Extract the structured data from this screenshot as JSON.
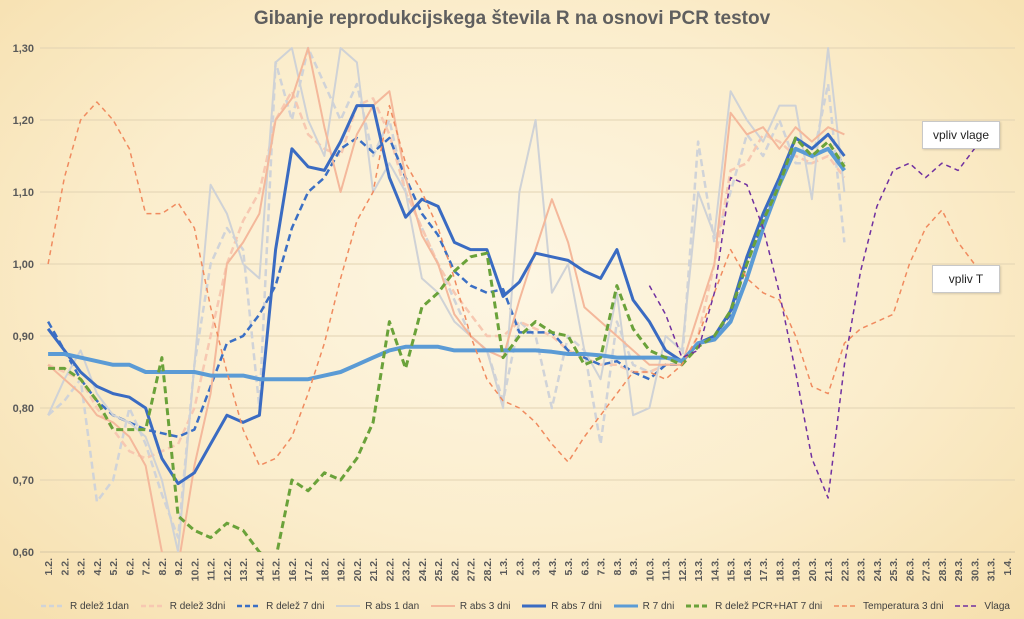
{
  "chart_data": {
    "type": "line",
    "title": "Gibanje reprodukcijskega števila R na osnovi PCR testov",
    "xlabel": "",
    "ylabel": "",
    "ylim": [
      0.6,
      1.3
    ],
    "yticks": [
      "0,60",
      "0,70",
      "0,80",
      "0,90",
      "1,00",
      "1,10",
      "1,20",
      "1,30"
    ],
    "grid": true,
    "legend_position": "bottom",
    "categories": [
      "1.2.",
      "2.2.",
      "3.2.",
      "4.2.",
      "5.2.",
      "6.2.",
      "7.2.",
      "8.2.",
      "9.2.",
      "10.2.",
      "11.2.",
      "12.2.",
      "13.2.",
      "14.2.",
      "15.2.",
      "16.2.",
      "17.2.",
      "18.2.",
      "19.2.",
      "20.2.",
      "21.2.",
      "22.2.",
      "23.2.",
      "24.2.",
      "25.2.",
      "26.2.",
      "27.2.",
      "28.2.",
      "1.3.",
      "2.3.",
      "3.3.",
      "4.3.",
      "5.3.",
      "6.3.",
      "7.3.",
      "8.3.",
      "9.3.",
      "10.3.",
      "11.3.",
      "12.3.",
      "13.3.",
      "14.3.",
      "15.3.",
      "16.3.",
      "17.3.",
      "18.3.",
      "19.3.",
      "20.3.",
      "21.3.",
      "22.3.",
      "23.3.",
      "24.3.",
      "25.3.",
      "26.3.",
      "27.3.",
      "28.3.",
      "29.3.",
      "30.3.",
      "31.3.",
      "1.4."
    ],
    "series": [
      {
        "name": "R delež 1dan",
        "color": "#d0d3d8",
        "dash": "dashed",
        "width": 2.5,
        "values": [
          0.79,
          0.81,
          0.84,
          0.67,
          0.7,
          0.8,
          0.75,
          0.68,
          0.62,
          0.86,
          1.0,
          1.05,
          1.02,
          0.8,
          1.28,
          1.2,
          1.3,
          1.25,
          1.2,
          1.25,
          1.15,
          1.2,
          1.1,
          1.05,
          1.0,
          0.95,
          0.9,
          0.88,
          0.81,
          0.92,
          0.9,
          0.8,
          0.9,
          0.88,
          0.75,
          0.92,
          0.86,
          0.85,
          0.86,
          0.86,
          1.17,
          1.03,
          1.1,
          1.18,
          1.15,
          1.2,
          1.14,
          1.14,
          1.25,
          1.03,
          null,
          null,
          null,
          null,
          null,
          null,
          null,
          null,
          null,
          null
        ]
      },
      {
        "name": "R delež 3dni",
        "color": "#f7c8b1",
        "dash": "dashed",
        "width": 2.5,
        "values": [
          0.86,
          0.85,
          0.84,
          0.8,
          0.77,
          0.74,
          0.73,
          0.74,
          0.75,
          0.8,
          0.9,
          1.0,
          1.06,
          1.1,
          1.2,
          1.24,
          1.18,
          1.16,
          1.15,
          1.22,
          1.23,
          1.18,
          1.1,
          1.05,
          1.0,
          0.96,
          0.93,
          0.9,
          0.9,
          0.92,
          0.91,
          0.9,
          0.88,
          0.87,
          0.86,
          0.86,
          0.85,
          0.85,
          0.86,
          0.86,
          0.9,
          1.0,
          1.13,
          1.14,
          1.18,
          1.17,
          1.15,
          1.14,
          1.15,
          1.12,
          null,
          null,
          null,
          null,
          null,
          null,
          null,
          null,
          null,
          null
        ]
      },
      {
        "name": "R delež 7 dni",
        "color": "#3b6fc4",
        "dash": "dashed",
        "width": 2.5,
        "values": [
          0.92,
          0.88,
          0.84,
          0.81,
          0.79,
          0.78,
          0.77,
          0.765,
          0.76,
          0.77,
          0.83,
          0.89,
          0.9,
          0.93,
          0.97,
          1.05,
          1.1,
          1.12,
          1.16,
          1.175,
          1.155,
          1.175,
          1.12,
          1.07,
          1.04,
          0.99,
          0.97,
          0.96,
          0.965,
          0.905,
          0.905,
          0.905,
          0.88,
          0.87,
          0.86,
          0.865,
          0.85,
          0.84,
          0.86,
          0.86,
          0.89,
          0.9,
          0.93,
          1.0,
          1.06,
          1.11,
          1.16,
          1.15,
          1.16,
          1.14,
          null,
          null,
          null,
          null,
          null,
          null,
          null,
          null,
          null,
          null
        ]
      },
      {
        "name": "R abs 1 dan",
        "color": "#cfd2d6",
        "dash": "solid",
        "width": 2,
        "values": [
          0.79,
          0.84,
          0.88,
          0.82,
          0.79,
          0.78,
          0.76,
          0.7,
          0.6,
          0.86,
          1.11,
          1.07,
          1.0,
          0.98,
          1.28,
          1.3,
          1.2,
          1.15,
          1.3,
          1.28,
          1.1,
          1.14,
          1.1,
          0.98,
          0.96,
          0.92,
          0.9,
          0.88,
          0.8,
          1.1,
          1.2,
          0.96,
          1.0,
          0.88,
          0.84,
          0.96,
          0.79,
          0.8,
          0.9,
          0.88,
          1.1,
          1.04,
          1.24,
          1.2,
          1.17,
          1.22,
          1.22,
          1.09,
          1.3,
          1.1,
          null,
          null,
          null,
          null,
          null,
          null,
          null,
          null,
          null,
          null
        ]
      },
      {
        "name": "R abs 3 dni",
        "color": "#f4b89b",
        "dash": "solid",
        "width": 2,
        "values": [
          0.86,
          0.84,
          0.82,
          0.79,
          0.78,
          0.76,
          0.72,
          0.6,
          0.58,
          0.72,
          0.82,
          1.0,
          1.03,
          1.07,
          1.2,
          1.23,
          1.3,
          1.19,
          1.1,
          1.18,
          1.22,
          1.24,
          1.12,
          1.04,
          1.0,
          0.93,
          0.9,
          0.88,
          0.87,
          0.95,
          1.02,
          1.09,
          1.03,
          0.94,
          0.92,
          0.9,
          0.88,
          0.86,
          0.86,
          0.86,
          0.93,
          1.0,
          1.21,
          1.18,
          1.19,
          1.16,
          1.19,
          1.17,
          1.19,
          1.18,
          null,
          null,
          null,
          null,
          null,
          null,
          null,
          null,
          null,
          null
        ]
      },
      {
        "name": "R abs 7 dni",
        "color": "#3a6bc2",
        "dash": "solid",
        "width": 3,
        "values": [
          0.91,
          0.88,
          0.85,
          0.83,
          0.82,
          0.815,
          0.8,
          0.73,
          0.695,
          0.71,
          0.75,
          0.79,
          0.78,
          0.79,
          1.02,
          1.16,
          1.135,
          1.13,
          1.17,
          1.22,
          1.22,
          1.12,
          1.065,
          1.09,
          1.08,
          1.03,
          1.02,
          1.02,
          0.955,
          0.975,
          1.015,
          1.01,
          1.005,
          0.99,
          0.98,
          1.02,
          0.95,
          0.92,
          0.88,
          0.865,
          0.89,
          0.9,
          0.935,
          1.01,
          1.07,
          1.12,
          1.175,
          1.16,
          1.18,
          1.15,
          null,
          null,
          null,
          null,
          null,
          null,
          null,
          null,
          null,
          null
        ]
      },
      {
        "name": "R 7 dni",
        "color": "#5b9bd5",
        "dash": "solid",
        "width": 4,
        "values": [
          0.875,
          0.875,
          0.87,
          0.865,
          0.86,
          0.86,
          0.85,
          0.85,
          0.85,
          0.85,
          0.845,
          0.845,
          0.845,
          0.84,
          0.84,
          0.84,
          0.84,
          0.845,
          0.85,
          0.86,
          0.87,
          0.88,
          0.885,
          0.885,
          0.885,
          0.88,
          0.88,
          0.88,
          0.88,
          0.88,
          0.88,
          0.878,
          0.875,
          0.875,
          0.873,
          0.87,
          0.87,
          0.87,
          0.87,
          0.865,
          0.89,
          0.895,
          0.92,
          0.98,
          1.05,
          1.11,
          1.16,
          1.15,
          1.16,
          1.13,
          null,
          null,
          null,
          null,
          null,
          null,
          null,
          null,
          null,
          null
        ]
      },
      {
        "name": "R delež PCR+HAT 7 dni",
        "color": "#6aa23a",
        "dash": "dashed",
        "width": 3,
        "values": [
          0.855,
          0.855,
          0.84,
          0.81,
          0.77,
          0.77,
          0.77,
          0.87,
          0.65,
          0.63,
          0.62,
          0.64,
          0.63,
          0.6,
          0.59,
          0.7,
          0.685,
          0.71,
          0.7,
          0.73,
          0.78,
          0.92,
          0.855,
          0.94,
          0.96,
          0.99,
          1.01,
          1.015,
          0.87,
          0.9,
          0.92,
          0.905,
          0.9,
          0.86,
          0.87,
          0.97,
          0.91,
          0.88,
          0.87,
          0.86,
          0.885,
          0.9,
          0.935,
          1.0,
          1.06,
          1.11,
          1.175,
          1.15,
          1.17,
          1.135,
          null,
          null,
          null,
          null,
          null,
          null,
          null,
          null,
          null,
          null
        ]
      },
      {
        "name": "Temperatura 3 dni",
        "color": "#f08b5f",
        "dash": "dashed",
        "width": 1.5,
        "values": [
          1.0,
          1.12,
          1.2,
          1.225,
          1.2,
          1.16,
          1.07,
          1.07,
          1.085,
          1.05,
          0.94,
          0.85,
          0.77,
          0.72,
          0.73,
          0.76,
          0.82,
          0.89,
          0.98,
          1.06,
          1.1,
          1.22,
          1.14,
          1.1,
          1.05,
          0.98,
          0.9,
          0.84,
          0.81,
          0.8,
          0.78,
          0.75,
          0.725,
          0.76,
          0.79,
          0.82,
          0.85,
          0.85,
          0.84,
          0.86,
          0.9,
          0.96,
          1.02,
          0.98,
          0.96,
          0.95,
          0.9,
          0.83,
          0.82,
          0.89,
          0.91,
          0.92,
          0.93,
          1.0,
          1.05,
          1.075,
          1.03,
          1.0,
          null,
          null
        ]
      },
      {
        "name": "Vlaga",
        "color": "#7030a0",
        "dash": "dashed",
        "width": 1.5,
        "values": [
          null,
          null,
          null,
          null,
          null,
          null,
          null,
          null,
          null,
          null,
          null,
          null,
          null,
          null,
          null,
          null,
          null,
          null,
          null,
          null,
          null,
          null,
          null,
          null,
          null,
          null,
          null,
          null,
          null,
          null,
          null,
          null,
          null,
          null,
          null,
          null,
          null,
          0.97,
          0.93,
          0.87,
          0.88,
          0.96,
          1.12,
          1.11,
          1.05,
          0.96,
          0.85,
          0.73,
          0.675,
          0.86,
          0.99,
          1.08,
          1.13,
          1.14,
          1.12,
          1.14,
          1.13,
          1.16,
          null,
          null
        ]
      }
    ],
    "annotations": [
      {
        "text": "vpliv vlage"
      },
      {
        "text": "vpliv T"
      }
    ]
  }
}
